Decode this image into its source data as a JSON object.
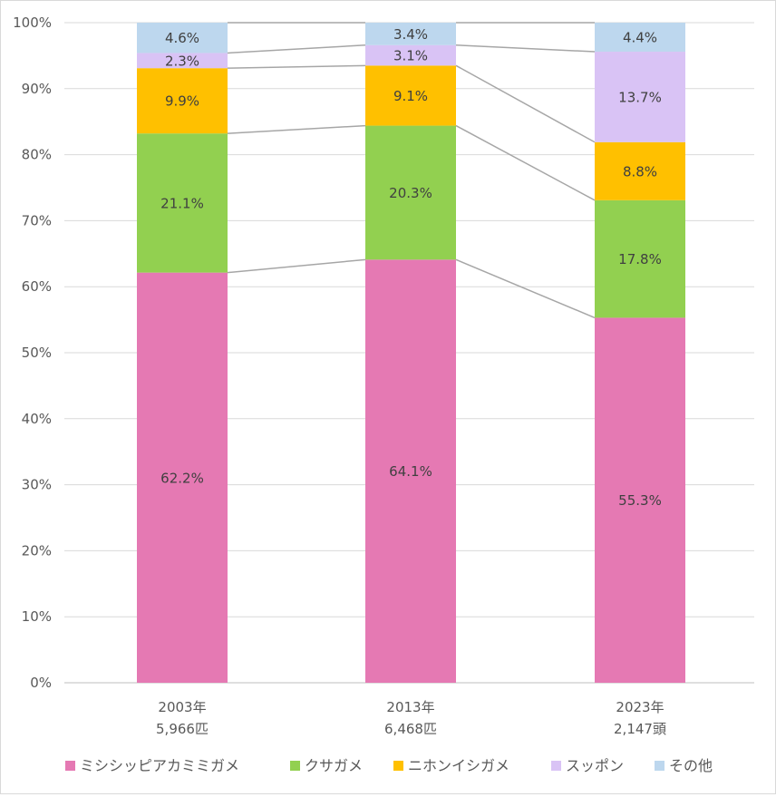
{
  "chart_data": {
    "type": "bar",
    "stacked": true,
    "percent_axis": true,
    "categories": [
      "2003年",
      "2013年",
      "2023年"
    ],
    "category_sublabels": [
      "5,966匹",
      "6,468匹",
      "2,147頭"
    ],
    "series": [
      {
        "name": "ミシシッピアカミミガメ",
        "values": [
          62.2,
          64.1,
          55.3
        ],
        "labels": [
          "62.2%",
          "64.1%",
          "55.3%"
        ],
        "color": "#e579b3"
      },
      {
        "name": "クサガメ",
        "values": [
          21.1,
          20.3,
          17.8
        ],
        "labels": [
          "21.1%",
          "20.3%",
          "17.8%"
        ],
        "color": "#92d050"
      },
      {
        "name": "ニホンイシガメ",
        "values": [
          9.9,
          9.1,
          8.8
        ],
        "labels": [
          "9.9%",
          "9.1%",
          "8.8%"
        ],
        "color": "#ffc000"
      },
      {
        "name": "スッポン",
        "values": [
          2.3,
          3.1,
          13.7
        ],
        "labels": [
          "2.3%",
          "3.1%",
          "13.7%"
        ],
        "color": "#d9c3f5"
      },
      {
        "name": "その他",
        "values": [
          4.6,
          3.4,
          4.4
        ],
        "labels": [
          "4.6%",
          "3.4%",
          "4.4%"
        ],
        "color": "#bdd7ee"
      }
    ],
    "yticks": [
      "0%",
      "10%",
      "20%",
      "30%",
      "40%",
      "50%",
      "60%",
      "70%",
      "80%",
      "90%",
      "100%"
    ],
    "ylim": [
      0,
      100
    ],
    "grid": true,
    "series_lines": true,
    "legend_position": "bottom"
  }
}
